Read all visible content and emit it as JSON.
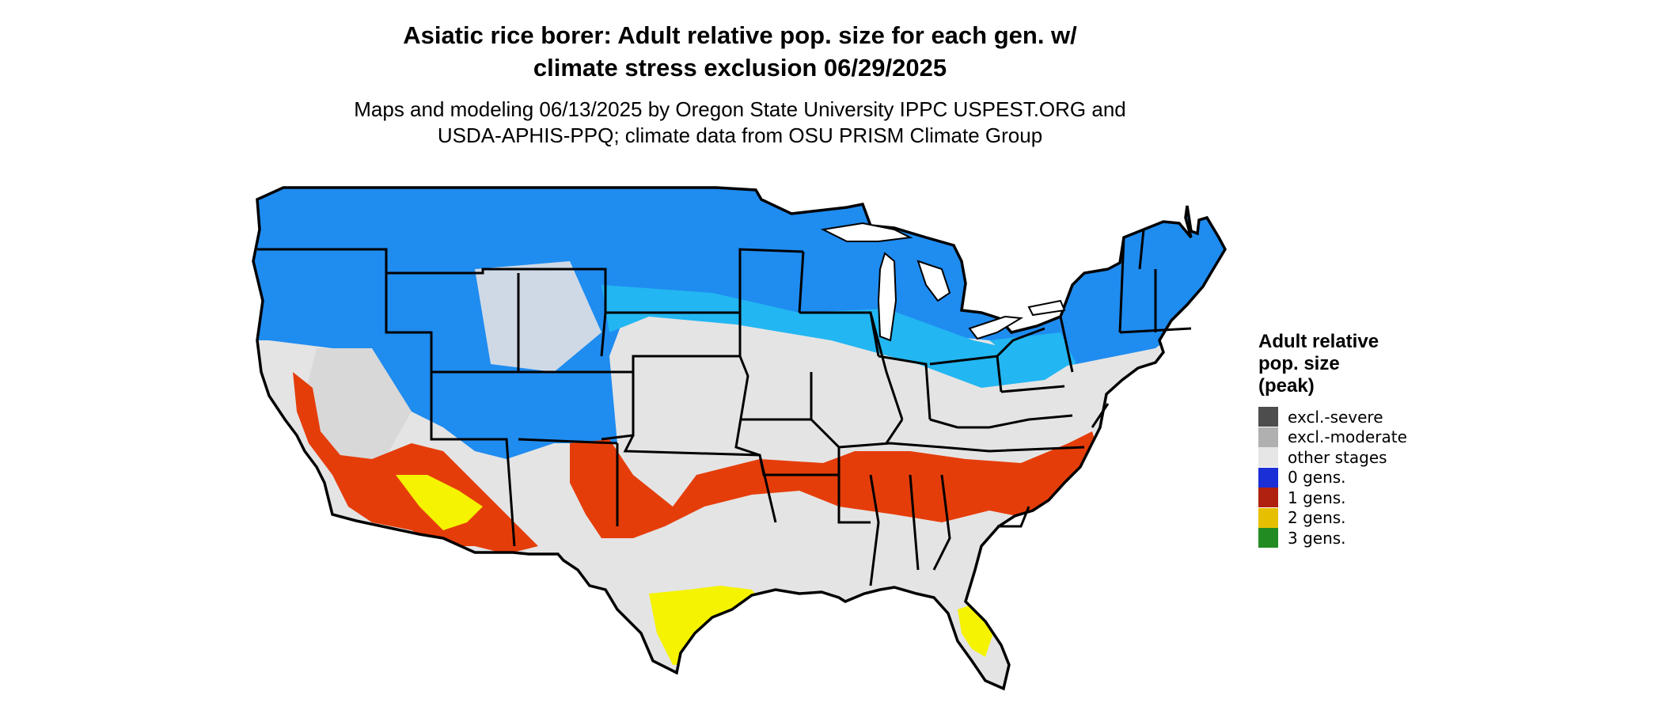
{
  "header": {
    "title_line1": "Asiatic rice borer: Adult relative pop. size for each gen. w/",
    "title_line2": "climate stress exclusion 06/29/2025",
    "subtitle_line1": "Maps and modeling 06/13/2025 by Oregon State University IPPC USPEST.ORG and",
    "subtitle_line2": "USDA-APHIS-PPQ; climate data from OSU PRISM Climate Group"
  },
  "legend": {
    "title_line1": "Adult relative",
    "title_line2": "pop. size",
    "title_line3": "(peak)",
    "items": [
      {
        "label": "excl.-severe",
        "color": "#4d4d4d"
      },
      {
        "label": "excl.-moderate",
        "color": "#b0b0b0"
      },
      {
        "label": "other stages",
        "color": "#e6e6e6"
      },
      {
        "label": "0 gens.",
        "color": "#1a2fd6"
      },
      {
        "label": "1 gens.",
        "color": "#b0210f"
      },
      {
        "label": "2 gens.",
        "color": "#e6c000"
      },
      {
        "label": "3 gens.",
        "color": "#228b22"
      }
    ]
  },
  "map_colors": {
    "land": "#e4e4e4",
    "north_blue": "#1f8cf0",
    "light_blue": "#22b6f2",
    "orange_band": "#e53d0a",
    "yellow": "#f5f300",
    "border": "#000000"
  }
}
